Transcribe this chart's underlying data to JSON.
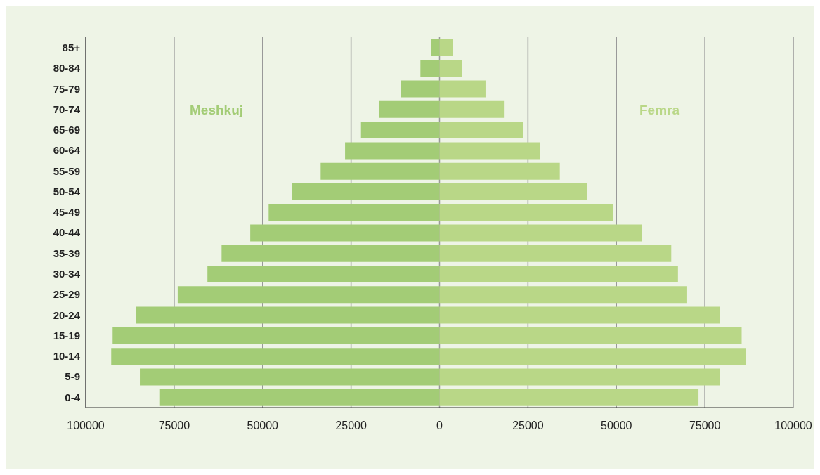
{
  "chart_data": {
    "type": "bar",
    "orientation": "horizontal",
    "stacked": true,
    "categories": [
      "85+",
      "80-84",
      "75-79",
      "70-74",
      "65-69",
      "60-64",
      "55-59",
      "50-54",
      "45-49",
      "40-44",
      "35-39",
      "30-34",
      "25-29",
      "20-24",
      "15-19",
      "10-14",
      "5-9",
      "0-4"
    ],
    "series": [
      {
        "name": "Meshkuj",
        "color": "#a3cc76",
        "values": [
          -2400,
          -5400,
          -10900,
          -17100,
          -22200,
          -26700,
          -33600,
          -41700,
          -48300,
          -53500,
          -61600,
          -65600,
          -74000,
          -85800,
          -92400,
          -92800,
          -84700,
          -79200
        ]
      },
      {
        "name": "Femra",
        "color": "#b9d787",
        "values": [
          3800,
          6400,
          13000,
          18200,
          23700,
          28400,
          34000,
          41700,
          49000,
          57100,
          65500,
          67400,
          70000,
          79200,
          85400,
          86500,
          79200,
          73200
        ]
      }
    ],
    "xlim": [
      -100000,
      100000
    ],
    "xticks": [
      {
        "value": -100000,
        "label": "100000"
      },
      {
        "value": -75000,
        "label": "75000"
      },
      {
        "value": -50000,
        "label": "50000"
      },
      {
        "value": -25000,
        "label": "25000"
      },
      0,
      25000,
      50000,
      75000,
      100000
    ],
    "grid": "x"
  }
}
